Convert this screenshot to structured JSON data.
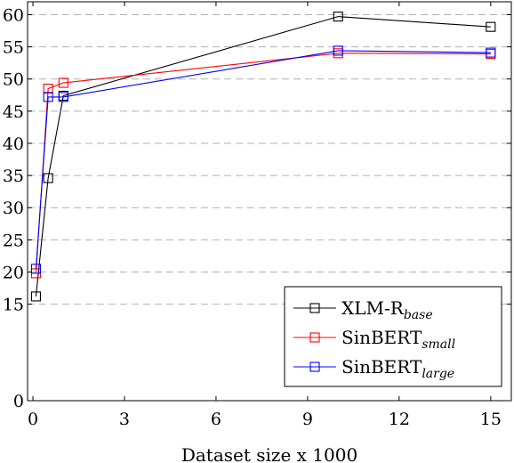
{
  "chart_data": {
    "type": "line",
    "title": "",
    "xlabel": "Dataset size x 1000",
    "ylabel": "",
    "xlim": [
      0,
      15.5
    ],
    "ylim": [
      0,
      62
    ],
    "xticks": [
      0,
      3,
      6,
      9,
      12,
      15
    ],
    "yticks": [
      0,
      15,
      20,
      25,
      30,
      35,
      40,
      45,
      50,
      55,
      60
    ],
    "grid": "horizontal dashed at y ticks 15–60",
    "legend_position": "bottom-right",
    "x": [
      0.1,
      0.5,
      1,
      10,
      15
    ],
    "series": [
      {
        "name": "XLM-R",
        "name_sub": "base",
        "color": "#000000",
        "values": [
          16.2,
          34.6,
          47.4,
          59.7,
          58.1
        ]
      },
      {
        "name": "SinBERT",
        "name_sub": "small",
        "color": "#ff0000",
        "values": [
          19.8,
          48.5,
          49.4,
          54.0,
          53.9
        ]
      },
      {
        "name": "SinBERT",
        "name_sub": "large",
        "color": "#0000ff",
        "values": [
          20.5,
          47.2,
          47.2,
          54.4,
          54.1
        ]
      }
    ]
  }
}
